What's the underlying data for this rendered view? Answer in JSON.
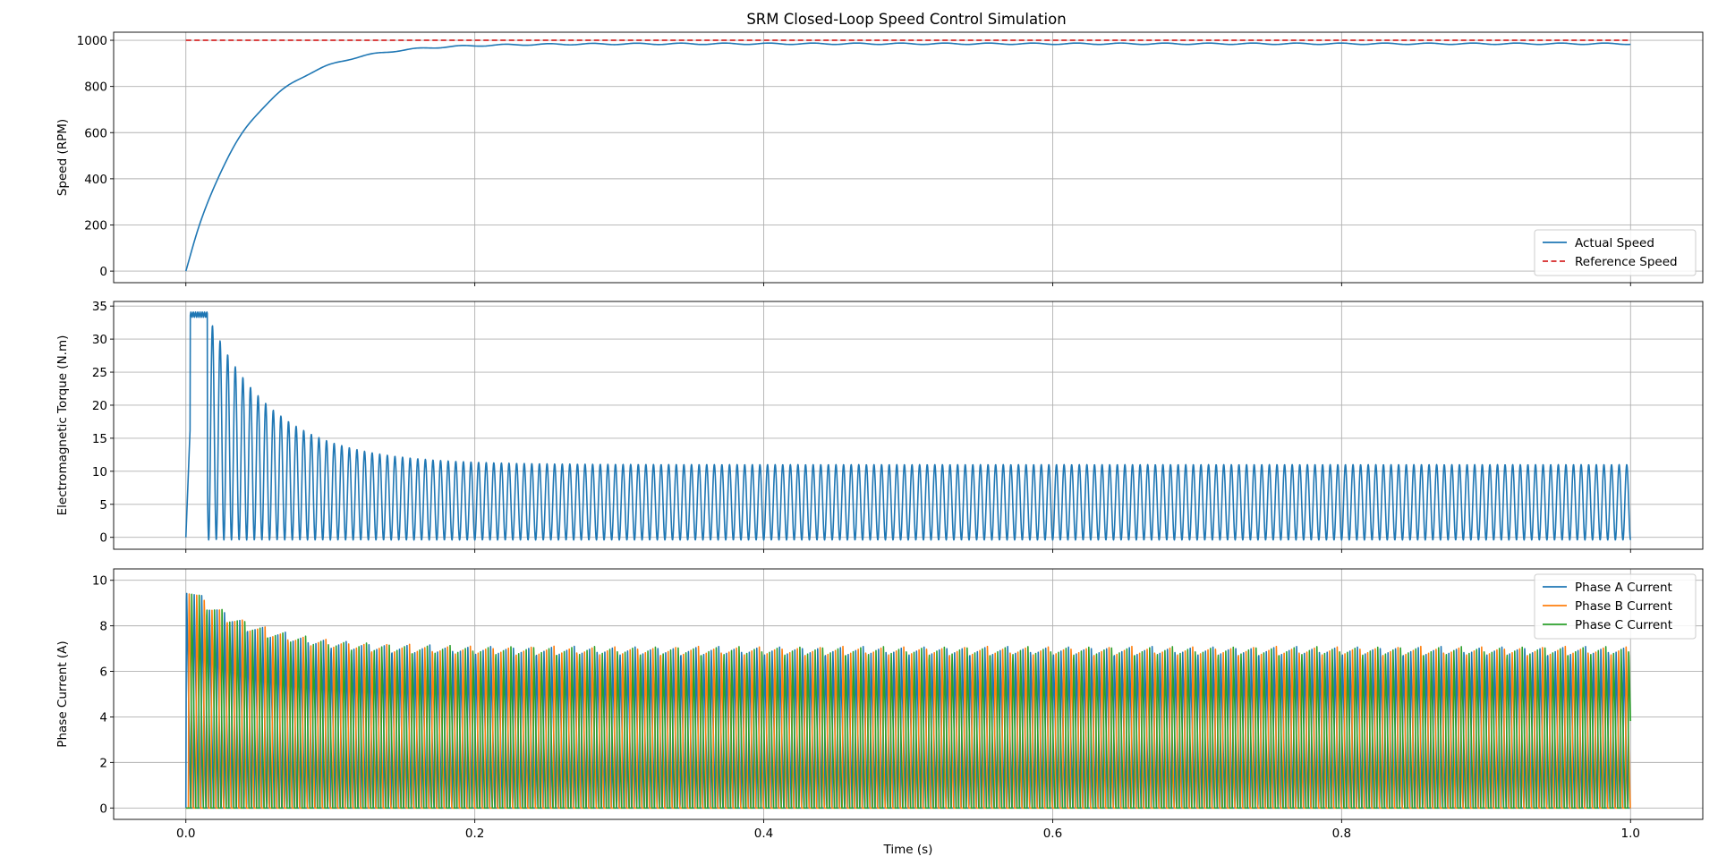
{
  "title": "SRM Closed-Loop Speed Control Simulation",
  "chart_data": [
    {
      "type": "line",
      "title": "SRM Closed-Loop Speed Control Simulation",
      "xlabel": "",
      "ylabel": "Speed (RPM)",
      "xlim": [
        -0.05,
        1.05
      ],
      "ylim": [
        -50,
        1035
      ],
      "xticks": [
        0.0,
        0.2,
        0.4,
        0.6,
        0.8,
        1.0
      ],
      "xtick_labels_visible": false,
      "yticks": [
        0,
        200,
        400,
        600,
        800,
        1000
      ],
      "grid": true,
      "legend": {
        "placement": "lower-right",
        "entries": [
          "Actual Speed",
          "Reference Speed"
        ]
      },
      "series": [
        {
          "name": "Actual Speed",
          "color": "#1f77b4",
          "style": "solid",
          "model": {
            "kind": "first_order_rise",
            "final": 985,
            "tau": 0.042,
            "start": 0.0,
            "end": 1.0,
            "initial_dip": -8,
            "ripple_amplitude": 3
          }
        },
        {
          "name": "Reference Speed",
          "color": "#d62728",
          "style": "dashed",
          "x": [
            0.0,
            1.0
          ],
          "values": [
            1000,
            1000
          ]
        }
      ]
    },
    {
      "type": "line",
      "xlabel": "",
      "ylabel": "Electromagnetic Torque (N.m)",
      "xlim": [
        -0.05,
        1.05
      ],
      "ylim": [
        -1.8,
        35.7
      ],
      "xticks": [
        0.0,
        0.2,
        0.4,
        0.6,
        0.8,
        1.0
      ],
      "xtick_labels_visible": false,
      "yticks": [
        0,
        5,
        10,
        15,
        20,
        25,
        30,
        35
      ],
      "grid": true,
      "series": [
        {
          "name": "",
          "color": "#1f77b4",
          "style": "solid",
          "model": {
            "kind": "oscillating_torque",
            "start": 0.0,
            "end": 1.0,
            "saturated_peak": 33.7,
            "saturated_until": 0.015,
            "steady_peak": 11.0,
            "steady_min": -0.4,
            "decay_tau": 0.045,
            "cycles": 190
          }
        }
      ]
    },
    {
      "type": "line",
      "xlabel": "Time (s)",
      "ylabel": "Phase Current (A)",
      "xlim": [
        -0.05,
        1.05
      ],
      "ylim": [
        -0.5,
        10.5
      ],
      "xticks": [
        0.0,
        0.2,
        0.4,
        0.6,
        0.8,
        1.0
      ],
      "xtick_labels": [
        "0.0",
        "0.2",
        "0.4",
        "0.6",
        "0.8",
        "1.0"
      ],
      "yticks": [
        0,
        2,
        4,
        6,
        8,
        10
      ],
      "grid": true,
      "legend": {
        "placement": "upper-right",
        "entries": [
          "Phase A Current",
          "Phase B Current",
          "Phase C Current"
        ]
      },
      "series": [
        {
          "name": "Phase A Current",
          "color": "#1f77b4",
          "style": "solid",
          "model": {
            "kind": "phase_current",
            "phase_offset": 0.0,
            "peak_start": 10.0,
            "peak_steady": 7.1,
            "decay_tau": 0.045,
            "cycles": 190
          }
        },
        {
          "name": "Phase B Current",
          "color": "#ff7f0e",
          "style": "solid",
          "model": {
            "kind": "phase_current",
            "phase_offset": 0.333,
            "peak_start": 10.0,
            "peak_steady": 7.1,
            "decay_tau": 0.045,
            "cycles": 190
          }
        },
        {
          "name": "Phase C Current",
          "color": "#2ca02c",
          "style": "solid",
          "model": {
            "kind": "phase_current",
            "phase_offset": 0.667,
            "peak_start": 10.0,
            "peak_steady": 7.1,
            "decay_tau": 0.045,
            "cycles": 190
          }
        }
      ]
    }
  ]
}
